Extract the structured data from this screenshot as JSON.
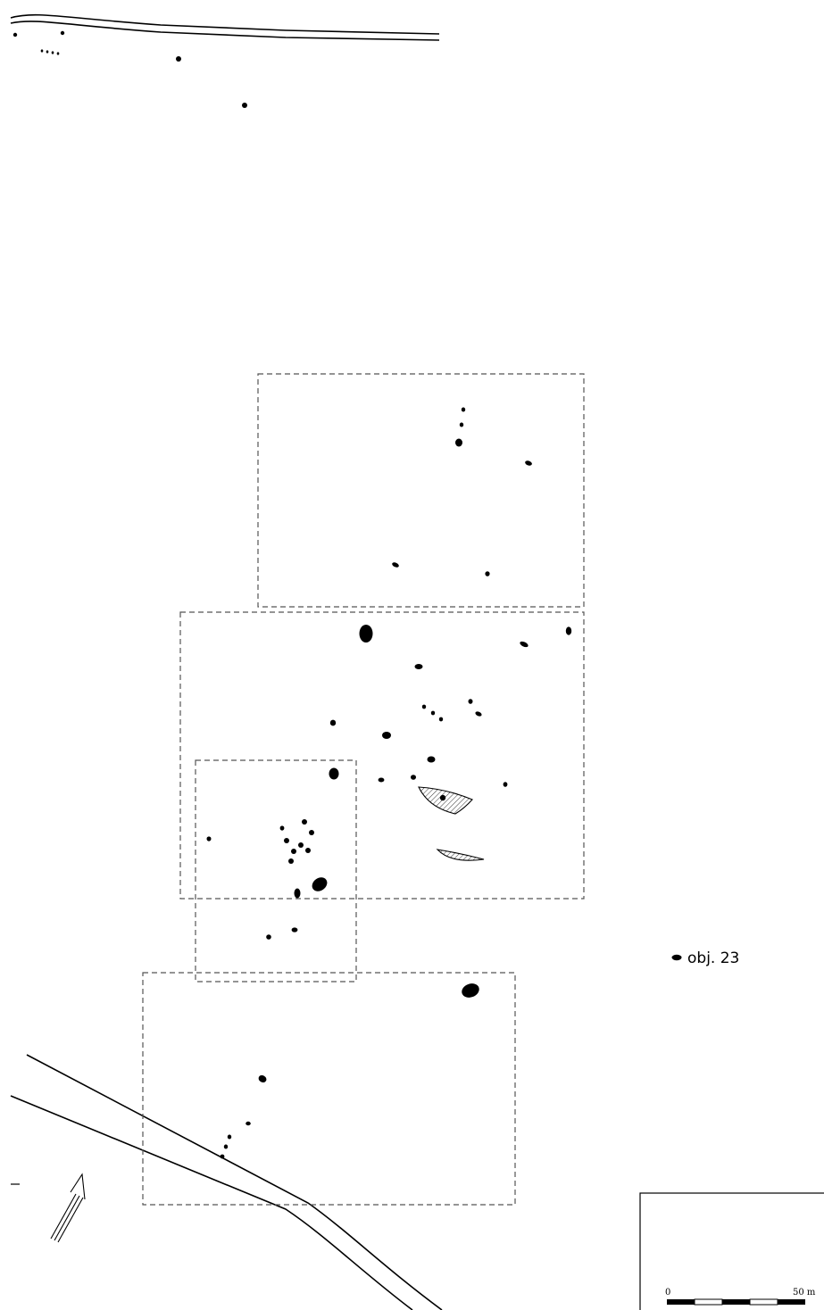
{
  "legend": {
    "label": "obj. 23"
  },
  "scale_bar": {
    "start_label": "0",
    "end_label": "50 m"
  },
  "colors": {
    "ink": "#000000",
    "background": "#ffffff",
    "excavation_outline": "#555555",
    "hatched_feature": "#ffffff"
  },
  "icons": {
    "north": "north-arrow-icon",
    "feature": "feature-marker-icon"
  }
}
